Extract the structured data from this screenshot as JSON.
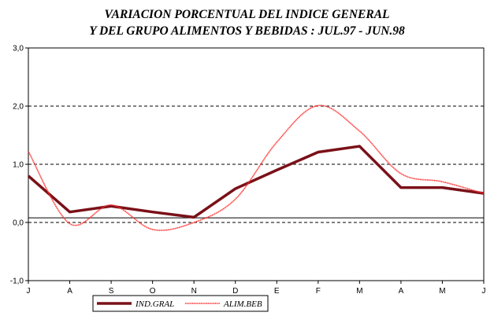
{
  "chart_data": {
    "type": "line",
    "title": [
      "VARIACION PORCENTUAL DEL INDICE GENERAL",
      "Y DEL GRUPO ALIMENTOS Y BEBIDAS : JUL.97 - JUN.98"
    ],
    "categories": [
      "J",
      "A",
      "S",
      "O",
      "N",
      "D",
      "E",
      "F",
      "M",
      "A",
      "M",
      "J"
    ],
    "ylim": [
      -1.0,
      3.0
    ],
    "yticks": [
      -1.0,
      0.0,
      1.0,
      2.0,
      3.0
    ],
    "ytick_labels": [
      "-1,0",
      "0,0",
      "1,0",
      "2,0",
      "3,0"
    ],
    "grid": "dashed horizontal at 1,0 and 2,0; dashed zero line",
    "baseline": 0.08,
    "series": [
      {
        "name": "IND.GRAL",
        "color": "#7a1018",
        "style": "thick solid",
        "values": [
          0.8,
          0.18,
          0.28,
          0.18,
          0.09,
          0.58,
          0.9,
          1.21,
          1.31,
          0.6,
          0.6,
          0.5
        ]
      },
      {
        "name": "ALIM.BEB",
        "color": "#ff2a2a",
        "style": "thin smoothed",
        "values": [
          1.22,
          -0.02,
          0.3,
          -0.12,
          0.0,
          0.4,
          1.38,
          2.01,
          1.57,
          0.84,
          0.7,
          0.5
        ]
      }
    ],
    "legend": {
      "position": "bottom",
      "entries": [
        "IND.GRAL",
        "ALIM.BEB"
      ]
    }
  }
}
